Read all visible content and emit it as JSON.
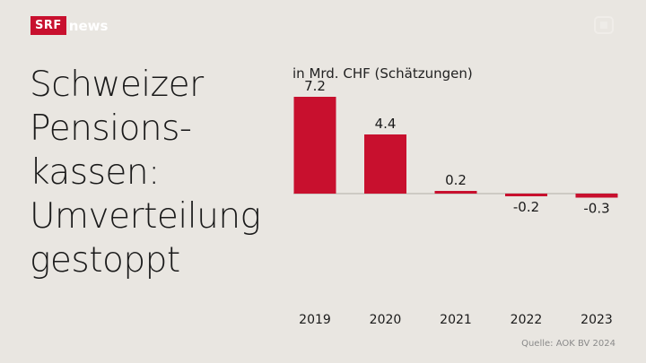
{
  "brand": {
    "logo_primary": "SRF",
    "logo_secondary": "news",
    "accent": "#c8102e"
  },
  "headline": [
    "Schweizer",
    "Pensions-",
    "kassen:",
    "Umverteilung",
    "gestoppt"
  ],
  "source": "Quelle: AOK BV 2024",
  "chart_data": {
    "type": "bar",
    "unit_label": "in Mrd. CHF (Schätzungen)",
    "categories": [
      "2019",
      "2020",
      "2021",
      "2022",
      "2023"
    ],
    "values": [
      7.2,
      4.4,
      0.2,
      -0.2,
      -0.3
    ],
    "value_labels": [
      "7.2",
      "4.4",
      "0.2",
      "-0.2",
      "-0.3"
    ],
    "bar_color": "#c8102e",
    "baseline_color": "#c4c0ba",
    "ylim": [
      -0.3,
      7.2
    ],
    "grid": false
  }
}
